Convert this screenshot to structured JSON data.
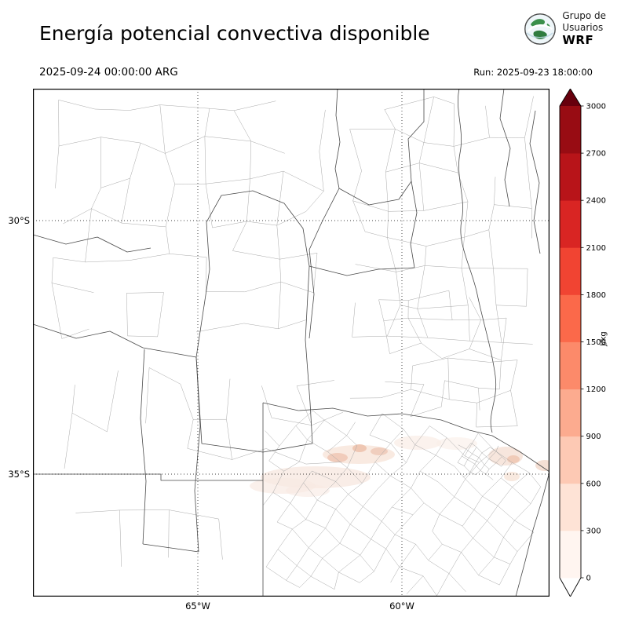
{
  "header": {
    "title": "Energía potencial convectiva disponible",
    "logo": {
      "line1": "Grupo de",
      "line2": "Usuarios",
      "line3": "WRF"
    }
  },
  "subheader": {
    "valid_time": "2025-09-24 00:00:00 ARG",
    "run_label": "Run: 2025-09-23 18:00:00"
  },
  "map": {
    "x_ticks": [
      "65°W",
      "60°W"
    ],
    "y_ticks": [
      "30°S",
      "35°S"
    ]
  },
  "colorbar": {
    "unit": "J/kg",
    "ticks": [
      "0",
      "300",
      "600",
      "900",
      "1200",
      "1500",
      "1800",
      "2100",
      "2400",
      "2700",
      "3000"
    ],
    "colors": [
      "#fff5f0",
      "#fee3d6",
      "#fdc9b4",
      "#fcab8f",
      "#fc8a6a",
      "#fb694a",
      "#f14432",
      "#d92523",
      "#b81419",
      "#980c13"
    ],
    "over_color": "#67000d",
    "under_color": "#ffffff"
  },
  "chart_data": {
    "type": "heatmap",
    "title": "Energía potencial convectiva disponible",
    "variable": "CAPE (convective available potential energy)",
    "unit": "J/kg",
    "valid_time": "2025-09-24 00:00:00 ARG",
    "model_run": "Run: 2025-09-23 18:00:00",
    "source": "Grupo de Usuarios WRF",
    "levels": [
      0,
      300,
      600,
      900,
      1200,
      1500,
      1800,
      2100,
      2400,
      2700,
      3000
    ],
    "colors": [
      "#fff5f0",
      "#fee3d6",
      "#fdc9b4",
      "#fcab8f",
      "#fc8a6a",
      "#fb694a",
      "#f14432",
      "#d92523",
      "#b81419",
      "#980c13"
    ],
    "x_tick_labels": [
      "65°W",
      "60°W"
    ],
    "y_tick_labels": [
      "30°S",
      "35°S"
    ],
    "legend_position": "right",
    "grid": "dotted graticule at 30S, 35S, 65W, 60W",
    "field_summary": "CAPE is near 0 J/kg over almost the entire domain; only faint values below ~300 J/kg appear in a broken zonal band near 35°S between roughly 64°W and 57°W (southern Buenos Aires / La Pampa border region and near the Atlantic coast)."
  }
}
